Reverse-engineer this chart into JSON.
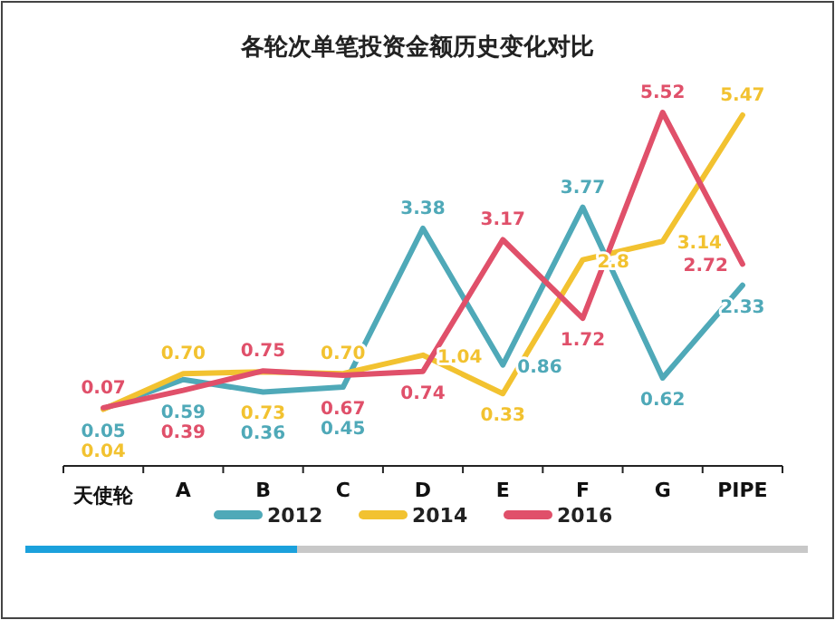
{
  "chart_data": {
    "type": "line",
    "title": "各轮次单笔投资金额历史变化对比",
    "categories": [
      "天使轮",
      "A",
      "B",
      "C",
      "D",
      "E",
      "F",
      "G",
      "PIPE"
    ],
    "series": [
      {
        "name": "2012",
        "color": "#4fa9b8",
        "values": [
          0.05,
          0.59,
          0.36,
          0.45,
          3.38,
          0.86,
          3.77,
          0.62,
          2.33
        ],
        "value_labels": [
          "0.05",
          "0.59",
          "0.36",
          "0.45",
          "3.38",
          "0.86",
          "3.77",
          "0.62",
          "2.33"
        ]
      },
      {
        "name": "2014",
        "color": "#f2c230",
        "values": [
          0.04,
          0.7,
          0.73,
          0.7,
          1.04,
          0.33,
          2.8,
          3.14,
          5.47
        ],
        "value_labels": [
          "0.04",
          "0.70",
          "0.73",
          "0.70",
          "1.04",
          "0.33",
          "2.8",
          "3.14",
          "5.47"
        ]
      },
      {
        "name": "2016",
        "color": "#e0506a",
        "values": [
          0.07,
          0.39,
          0.75,
          0.67,
          0.74,
          3.17,
          1.72,
          5.52,
          2.72
        ],
        "value_labels": [
          "0.07",
          "0.39",
          "0.75",
          "0.67",
          "0.74",
          "3.17",
          "1.72",
          "5.52",
          "2.72"
        ]
      }
    ],
    "relative": false,
    "legend": "bottom",
    "marker": "none",
    "line_style": "solid",
    "grid": false
  }
}
